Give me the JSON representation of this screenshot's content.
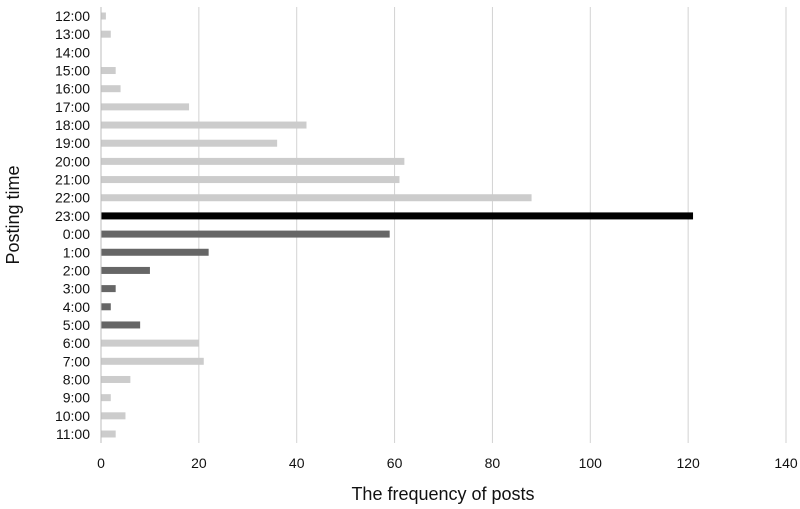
{
  "chart_data": {
    "type": "bar",
    "orientation": "horizontal",
    "title": "",
    "xlabel": "The frequency of posts",
    "ylabel": "Posting time",
    "xlim": [
      0,
      140
    ],
    "xticks": [
      0,
      20,
      40,
      60,
      80,
      100,
      120,
      140
    ],
    "grid": true,
    "legend": "none",
    "categories": [
      "12:00",
      "13:00",
      "14:00",
      "15:00",
      "16:00",
      "17:00",
      "18:00",
      "19:00",
      "20:00",
      "21:00",
      "22:00",
      "23:00",
      "0:00",
      "1:00",
      "2:00",
      "3:00",
      "4:00",
      "5:00",
      "6:00",
      "7:00",
      "8:00",
      "9:00",
      "10:00",
      "11:00"
    ],
    "values": [
      1,
      2,
      0,
      3,
      4,
      18,
      42,
      36,
      62,
      61,
      88,
      121,
      59,
      22,
      10,
      3,
      2,
      8,
      20,
      21,
      6,
      2,
      5,
      3
    ],
    "bar_colors": [
      "#cccccc",
      "#cccccc",
      "#cccccc",
      "#cccccc",
      "#cccccc",
      "#cccccc",
      "#cccccc",
      "#cccccc",
      "#cccccc",
      "#cccccc",
      "#cccccc",
      "#000000",
      "#666666",
      "#666666",
      "#666666",
      "#666666",
      "#666666",
      "#666666",
      "#cccccc",
      "#cccccc",
      "#cccccc",
      "#cccccc",
      "#cccccc",
      "#cccccc"
    ]
  }
}
